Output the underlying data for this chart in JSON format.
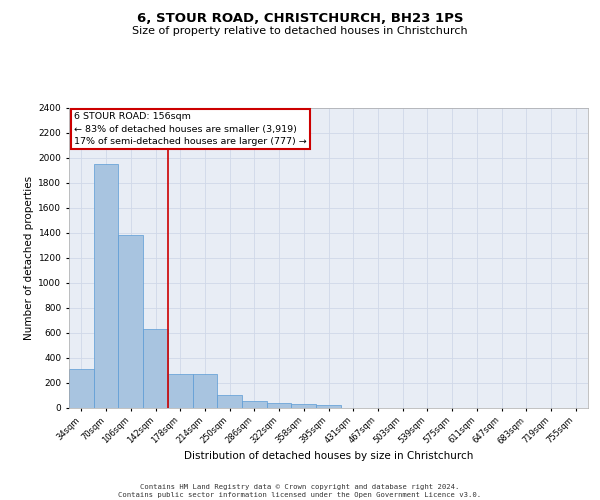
{
  "title": "6, STOUR ROAD, CHRISTCHURCH, BH23 1PS",
  "subtitle": "Size of property relative to detached houses in Christchurch",
  "xlabel": "Distribution of detached houses by size in Christchurch",
  "ylabel": "Number of detached properties",
  "footer_line1": "Contains HM Land Registry data © Crown copyright and database right 2024.",
  "footer_line2": "Contains public sector information licensed under the Open Government Licence v3.0.",
  "bar_labels": [
    "34sqm",
    "70sqm",
    "106sqm",
    "142sqm",
    "178sqm",
    "214sqm",
    "250sqm",
    "286sqm",
    "322sqm",
    "358sqm",
    "395sqm",
    "431sqm",
    "467sqm",
    "503sqm",
    "539sqm",
    "575sqm",
    "611sqm",
    "647sqm",
    "683sqm",
    "719sqm",
    "755sqm"
  ],
  "bar_values": [
    310,
    1950,
    1380,
    630,
    265,
    265,
    100,
    50,
    35,
    25,
    20,
    0,
    0,
    0,
    0,
    0,
    0,
    0,
    0,
    0,
    0
  ],
  "bar_color": "#a8c4e0",
  "bar_edge_color": "#5b9bd5",
  "grid_color": "#d0d8e8",
  "background_color": "#e8edf5",
  "annotation_line1": "6 STOUR ROAD: 156sqm",
  "annotation_line2": "← 83% of detached houses are smaller (3,919)",
  "annotation_line3": "17% of semi-detached houses are larger (777) →",
  "annotation_box_color": "#cc0000",
  "vline_x_index": 3.5,
  "vline_color": "#cc0000",
  "ylim": [
    0,
    2400
  ],
  "yticks": [
    0,
    200,
    400,
    600,
    800,
    1000,
    1200,
    1400,
    1600,
    1800,
    2000,
    2200,
    2400
  ]
}
